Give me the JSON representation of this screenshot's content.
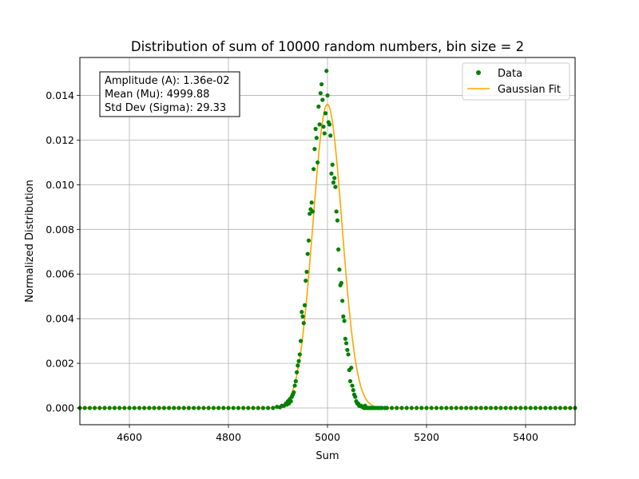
{
  "chart_data": {
    "type": "scatter",
    "title": "Distribution of sum of 10000 random numbers, bin size = 2",
    "xlabel": "Sum",
    "ylabel": "Normalized Distribution",
    "xlim": [
      4500,
      5500
    ],
    "ylim": [
      -0.00075,
      0.0157
    ],
    "x_ticks": [
      4600,
      4800,
      5000,
      5200,
      5400
    ],
    "y_ticks": [
      0.0,
      0.002,
      0.004,
      0.006,
      0.008,
      0.01,
      0.012,
      0.014
    ],
    "y_tick_labels": [
      "0.000",
      "0.002",
      "0.004",
      "0.006",
      "0.008",
      "0.010",
      "0.012",
      "0.014"
    ],
    "grid": true,
    "legend_position": "upper-right",
    "annotation": {
      "lines": [
        "Amplitude (A): 1.36e-02",
        "Mean (Mu): 4999.88",
        "Std Dev (Sigma): 29.33"
      ],
      "position": "upper-left"
    },
    "series": [
      {
        "name": "Data",
        "kind": "scatter",
        "color": "#008000",
        "x": [
          4880,
          4890,
          4898,
          4904,
          4908,
          4912,
          4916,
          4918,
          4920,
          4922,
          4924,
          4926,
          4928,
          4930,
          4932,
          4934,
          4936,
          4938,
          4940,
          4942,
          4944,
          4946,
          4948,
          4950,
          4952,
          4954,
          4956,
          4958,
          4960,
          4962,
          4964,
          4966,
          4968,
          4970,
          4972,
          4974,
          4976,
          4978,
          4980,
          4982,
          4984,
          4986,
          4988,
          4990,
          4992,
          4994,
          4996,
          4998,
          5000,
          5002,
          5004,
          5006,
          5008,
          5010,
          5012,
          5014,
          5016,
          5018,
          5020,
          5022,
          5024,
          5026,
          5028,
          5030,
          5032,
          5034,
          5036,
          5038,
          5040,
          5042,
          5044,
          5046,
          5048,
          5050,
          5052,
          5054,
          5056,
          5058,
          5060,
          5062,
          5064,
          5066,
          5068,
          5070,
          5072,
          5074,
          5076,
          5078,
          5080,
          5082,
          5084,
          5086,
          5088,
          5090,
          5094,
          5098,
          5102,
          5106,
          5110,
          5116
        ],
        "y": [
          0.0,
          0.0,
          5e-05,
          3e-05,
          0.0001,
          0.0001,
          0.0002,
          0.00015,
          0.0003,
          0.0002,
          0.0004,
          0.0003,
          0.0005,
          0.0006,
          0.0007,
          0.001,
          0.0012,
          0.0016,
          0.0019,
          0.0021,
          0.0024,
          0.003,
          0.0043,
          0.0041,
          0.0038,
          0.0046,
          0.0057,
          0.0061,
          0.0069,
          0.0075,
          0.0087,
          0.0089,
          0.0092,
          0.0088,
          0.0107,
          0.0116,
          0.0125,
          0.0121,
          0.011,
          0.0135,
          0.0127,
          0.0141,
          0.0145,
          0.0138,
          0.0126,
          0.0123,
          0.0132,
          0.0151,
          0.014,
          0.0128,
          0.0127,
          0.0122,
          0.0105,
          0.0109,
          0.0101,
          0.0103,
          0.0099,
          0.0088,
          0.0084,
          0.0071,
          0.0062,
          0.0055,
          0.0056,
          0.0048,
          0.0041,
          0.0039,
          0.0031,
          0.0029,
          0.0026,
          0.0024,
          0.0017,
          0.0012,
          0.0018,
          0.001,
          0.0008,
          0.0006,
          0.0005,
          0.0003,
          0.0002,
          0.0002,
          0.0001,
          0.0001,
          0.0001,
          5e-05,
          3e-05,
          0.0,
          0.0001,
          0.0,
          0.0,
          0.0,
          0.0,
          0.0,
          0.0,
          0.0,
          0.0,
          0.0,
          0.0,
          0.0,
          0.0,
          0.0
        ],
        "baseline_x_range": [
          4500,
          5500
        ],
        "baseline_step": 10,
        "baseline_y": 0.0
      },
      {
        "name": "Gaussian Fit",
        "kind": "line",
        "color": "#FFA500",
        "model": "gaussian",
        "amplitude": 0.0136,
        "mean": 4999.88,
        "sigma": 29.33
      }
    ]
  }
}
